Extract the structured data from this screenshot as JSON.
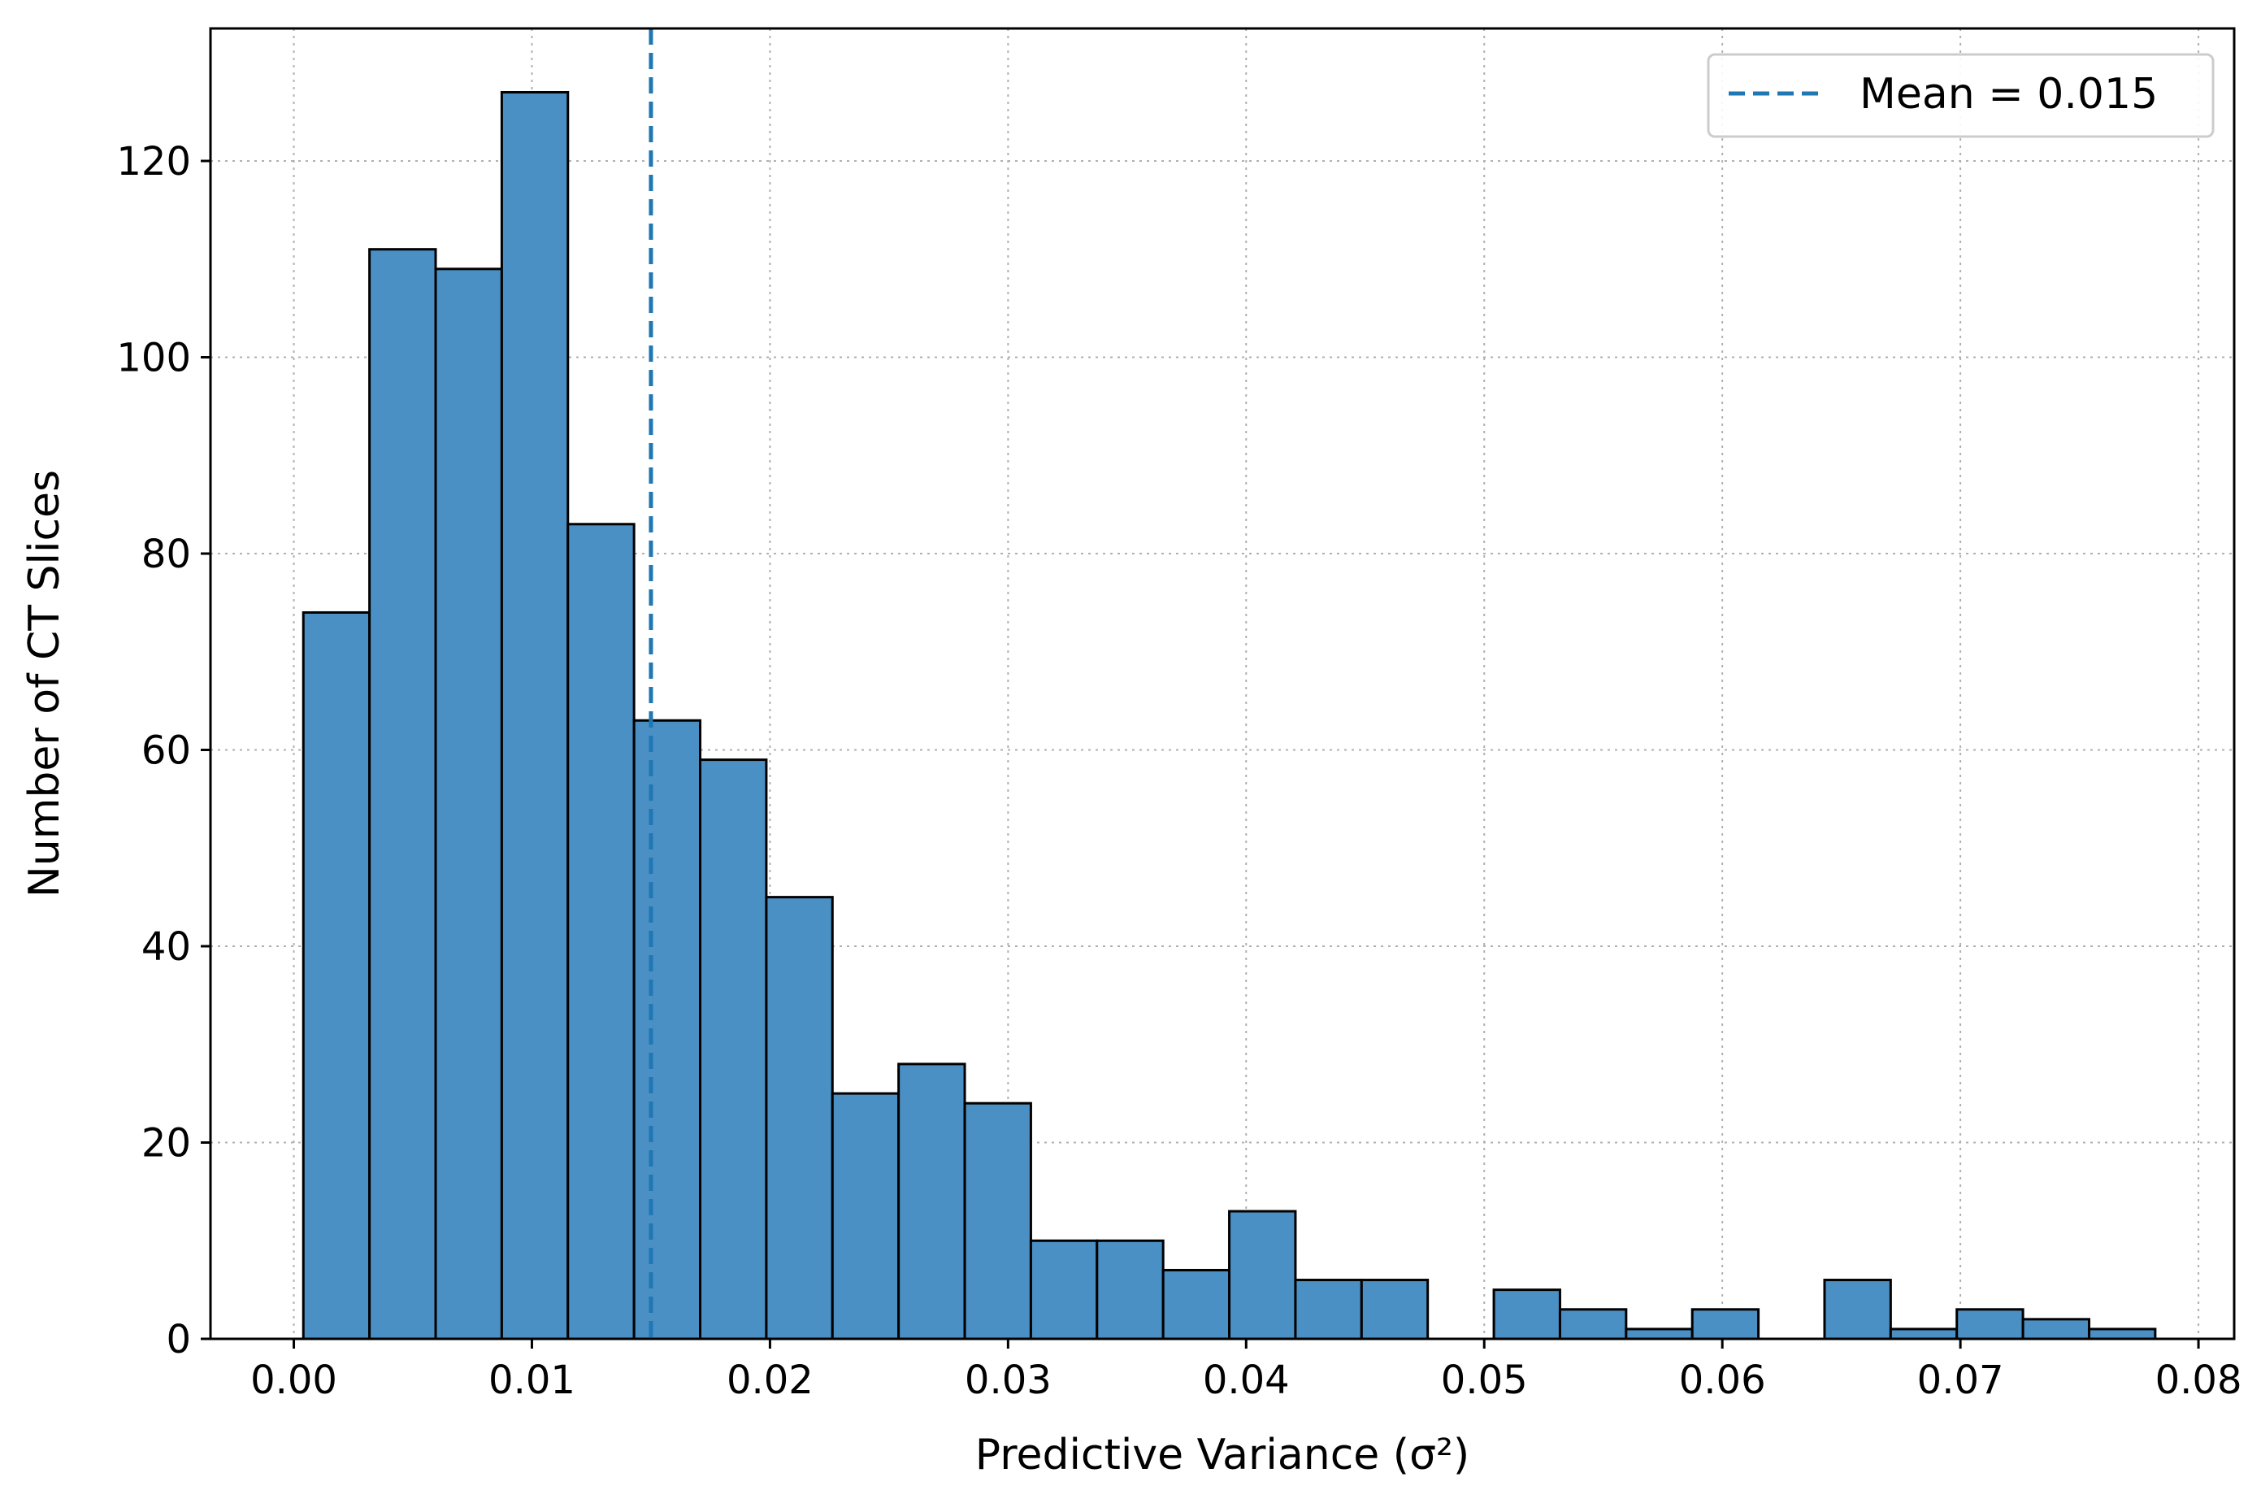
{
  "chart_data": {
    "type": "bar",
    "title": "",
    "xlabel": "Predictive Variance (σ²)",
    "ylabel": "Number of CT Slices",
    "xlim": [
      -0.0035,
      0.0815
    ],
    "ylim": [
      0,
      133.5
    ],
    "xticks": [
      0.0,
      0.01,
      0.02,
      0.03,
      0.04,
      0.05,
      0.06,
      0.07,
      0.08
    ],
    "xtick_labels": [
      "0.00",
      "0.01",
      "0.02",
      "0.03",
      "0.04",
      "0.05",
      "0.06",
      "0.07",
      "0.08"
    ],
    "yticks": [
      0,
      20,
      40,
      60,
      80,
      100,
      120
    ],
    "ytick_labels": [
      "0",
      "20",
      "40",
      "60",
      "80",
      "100",
      "120"
    ],
    "grid": true,
    "bin_start": 0.0004,
    "bin_width": 0.002778,
    "bins": [
      {
        "range": [
          0.0004,
          0.0032
        ],
        "count": 74
      },
      {
        "range": [
          0.0032,
          0.006
        ],
        "count": 111
      },
      {
        "range": [
          0.006,
          0.0087
        ],
        "count": 109
      },
      {
        "range": [
          0.0087,
          0.0115
        ],
        "count": 127
      },
      {
        "range": [
          0.0115,
          0.0143
        ],
        "count": 83
      },
      {
        "range": [
          0.0143,
          0.0171
        ],
        "count": 63
      },
      {
        "range": [
          0.0171,
          0.0199
        ],
        "count": 59
      },
      {
        "range": [
          0.0199,
          0.0226
        ],
        "count": 45
      },
      {
        "range": [
          0.0226,
          0.0254
        ],
        "count": 25
      },
      {
        "range": [
          0.0254,
          0.0282
        ],
        "count": 28
      },
      {
        "range": [
          0.0282,
          0.031
        ],
        "count": 24
      },
      {
        "range": [
          0.031,
          0.0338
        ],
        "count": 10
      },
      {
        "range": [
          0.0338,
          0.0365
        ],
        "count": 10
      },
      {
        "range": [
          0.0365,
          0.0393
        ],
        "count": 7
      },
      {
        "range": [
          0.0393,
          0.0421
        ],
        "count": 13
      },
      {
        "range": [
          0.0421,
          0.0449
        ],
        "count": 6
      },
      {
        "range": [
          0.0449,
          0.0476
        ],
        "count": 6
      },
      {
        "range": [
          0.0476,
          0.0504
        ],
        "count": 0
      },
      {
        "range": [
          0.0504,
          0.0532
        ],
        "count": 5
      },
      {
        "range": [
          0.0532,
          0.056
        ],
        "count": 3
      },
      {
        "range": [
          0.056,
          0.0588
        ],
        "count": 1
      },
      {
        "range": [
          0.0588,
          0.0615
        ],
        "count": 3
      },
      {
        "range": [
          0.0615,
          0.0643
        ],
        "count": 0
      },
      {
        "range": [
          0.0643,
          0.0671
        ],
        "count": 6
      },
      {
        "range": [
          0.0671,
          0.0699
        ],
        "count": 1
      },
      {
        "range": [
          0.0699,
          0.0726
        ],
        "count": 3
      },
      {
        "range": [
          0.0726,
          0.0754
        ],
        "count": 2
      },
      {
        "range": [
          0.0754,
          0.0782
        ],
        "count": 1
      }
    ],
    "mean_line": {
      "x": 0.015,
      "label": "Mean = 0.015",
      "color": "#1f77b4",
      "style": "dashed"
    },
    "legend": {
      "position": "top-right",
      "entries": [
        "Mean = 0.015"
      ]
    },
    "colors": {
      "bar_fill": "#4a90c4",
      "bar_edge": "#000000",
      "grid": "#b0b0b0",
      "mean_line": "#1f77b4"
    }
  }
}
